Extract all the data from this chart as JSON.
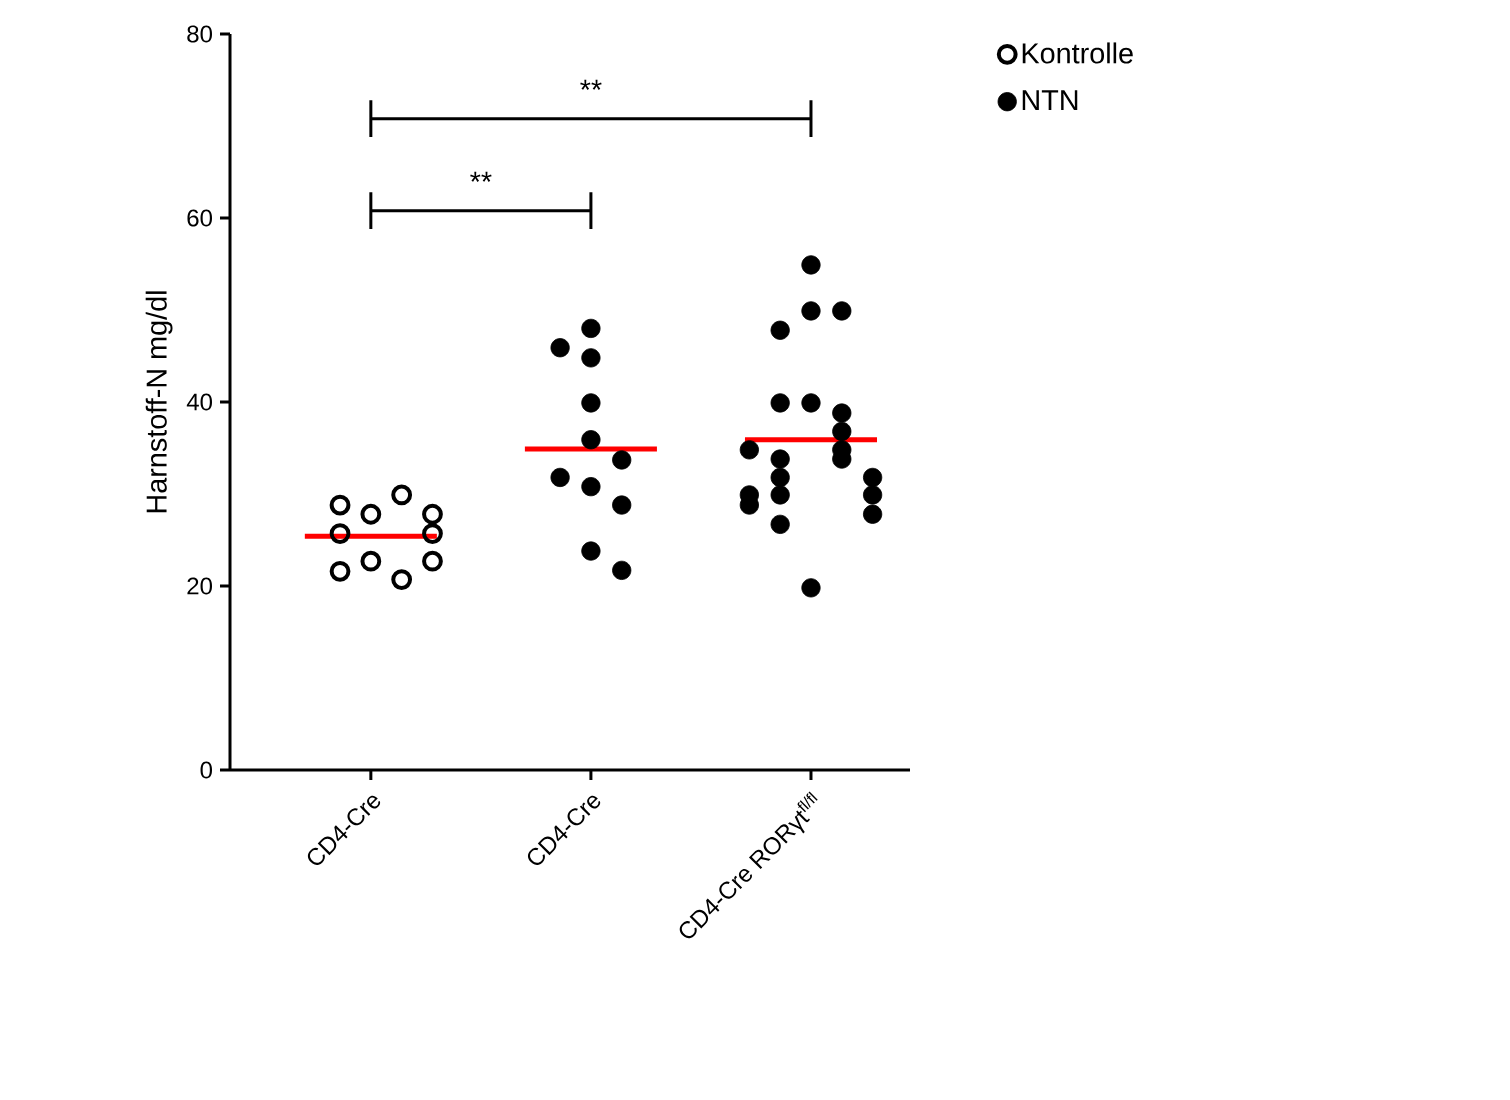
{
  "chart_data": {
    "type": "scatter",
    "ylabel": "Harnstoff-N  mg/dl",
    "categories": [
      "CD4-Cre",
      "CD4-Cre",
      "CD4-Cre RORγt$^{fl/fl}$"
    ],
    "ylim": [
      0,
      80
    ],
    "yticks": [
      0,
      20,
      40,
      60,
      80
    ],
    "grid": false,
    "legend": "top right",
    "series": [
      {
        "name": "Kontrolle",
        "color": "#000000",
        "marker": "circle-open",
        "values": [
          27.8,
          null,
          null
        ]
      },
      {
        "color": "#000000",
        "marker": "circle-open",
        "values": [
          29.9,
          null,
          null
        ]
      },
      {
        "color": "#000000",
        "marker": "circle-open",
        "values": [
          28.8,
          null,
          null
        ]
      },
      {
        "color": "#000000",
        "marker": "circle-open",
        "values": [
          27.8,
          null,
          null
        ]
      },
      {
        "color": "#000000",
        "marker": "circle-open",
        "values": [
          25.7,
          null,
          null
        ]
      },
      {
        "color": "#000000",
        "marker": "circle-open",
        "values": [
          25.7,
          null,
          null
        ]
      },
      {
        "color": "#000000",
        "marker": "circle-open",
        "values": [
          22.7,
          null,
          null
        ]
      },
      {
        "color": "#000000",
        "marker": "circle-open",
        "values": [
          20.7,
          null,
          null
        ]
      },
      {
        "color": "#000000",
        "marker": "circle-open",
        "values": [
          21.6,
          null,
          null
        ]
      },
      {
        "color": "#000000",
        "marker": "circle-open",
        "values": [
          22.7,
          null,
          null
        ]
      },
      {
        "name": "NTN",
        "color": "#000000",
        "marker": "circle",
        "values": [
          null,
          48.0,
          54.9
        ]
      },
      {
        "color": "#000000",
        "marker": "circle",
        "values": [
          null,
          44.8,
          49.9
        ]
      },
      {
        "color": "#000000",
        "marker": "circle",
        "values": [
          null,
          45.9,
          49.9
        ]
      },
      {
        "color": "#000000",
        "marker": "circle",
        "values": [
          null,
          39.9,
          47.8
        ]
      },
      {
        "color": "#000000",
        "marker": "circle",
        "values": [
          null,
          35.9,
          39.9
        ]
      },
      {
        "color": "#000000",
        "marker": "circle",
        "values": [
          null,
          33.7,
          38.8
        ]
      },
      {
        "color": "#000000",
        "marker": "circle",
        "values": [
          null,
          30.8,
          39.9
        ]
      },
      {
        "color": "#000000",
        "marker": "circle",
        "values": [
          null,
          31.8,
          36.8
        ]
      },
      {
        "color": "#000000",
        "marker": "circle",
        "values": [
          null,
          28.8,
          34.8
        ]
      },
      {
        "color": "#000000",
        "marker": "circle",
        "values": [
          null,
          23.8,
          33.8
        ]
      },
      {
        "color": "#000000",
        "marker": "circle",
        "values": [
          null,
          21.7,
          33.8
        ]
      },
      {
        "color": "#000000",
        "marker": "circle",
        "values": [
          null,
          null,
          34.8
        ]
      },
      {
        "color": "#000000",
        "marker": "circle",
        "values": [
          null,
          null,
          31.8
        ]
      },
      {
        "color": "#000000",
        "marker": "circle",
        "values": [
          null,
          null,
          31.8
        ]
      },
      {
        "color": "#000000",
        "marker": "circle",
        "values": [
          null,
          null,
          29.9
        ]
      },
      {
        "color": "#000000",
        "marker": "circle",
        "values": [
          null,
          null,
          29.9
        ]
      },
      {
        "color": "#000000",
        "marker": "circle",
        "values": [
          null,
          null,
          29.9
        ]
      },
      {
        "color": "#000000",
        "marker": "circle",
        "values": [
          null,
          null,
          27.8
        ]
      },
      {
        "color": "#000000",
        "marker": "circle",
        "values": [
          null,
          null,
          28.8
        ]
      },
      {
        "color": "#000000",
        "marker": "circle",
        "values": [
          null,
          null,
          26.7
        ]
      },
      {
        "color": "#000000",
        "marker": "circle",
        "values": [
          null,
          null,
          19.8
        ]
      },
      {
        "type": "box",
        "color": "#ff0000",
        "boxes": [
          {
            "low": 25.4,
            "q1": 25.4,
            "median": 25.4,
            "q3": 25.4,
            "high": 25.4
          },
          {
            "low": 34.9,
            "q1": 34.9,
            "median": 34.9,
            "q3": 34.9,
            "high": 34.9
          },
          {
            "low": 35.9,
            "q1": 35.9,
            "median": 35.9,
            "q3": 35.9,
            "high": 35.9
          }
        ]
      }
    ],
    "annotations": [
      "**",
      "**"
    ]
  }
}
